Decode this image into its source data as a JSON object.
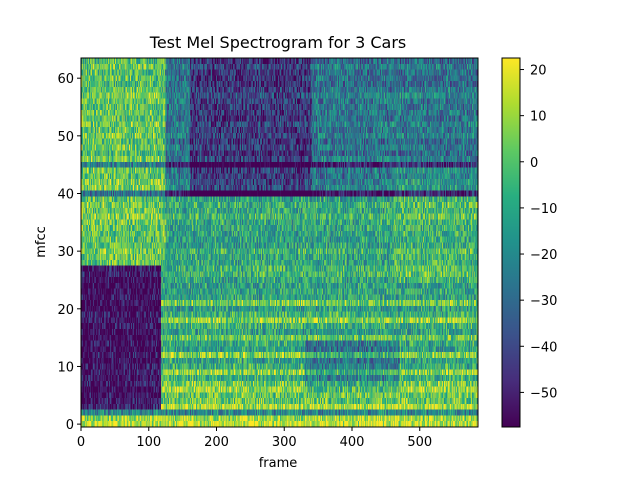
{
  "chart_data": {
    "type": "heatmap",
    "title": "Test Mel Spectrogram for 3 Cars",
    "xlabel": "frame",
    "ylabel": "mfcc",
    "xlim": [
      0,
      586
    ],
    "ylim": [
      -0.5,
      63.5
    ],
    "xticks": [
      0,
      100,
      200,
      300,
      400,
      500
    ],
    "yticks": [
      0,
      10,
      20,
      30,
      40,
      50,
      60
    ],
    "colormap": "viridis",
    "colorbar": {
      "range": [
        -57.5,
        22.5
      ],
      "ticks": [
        20,
        10,
        0,
        -10,
        -20,
        -30,
        -40,
        -50
      ]
    },
    "colors": {
      "low": "#440154",
      "mid": "#21908c",
      "high": "#fde725"
    }
  }
}
